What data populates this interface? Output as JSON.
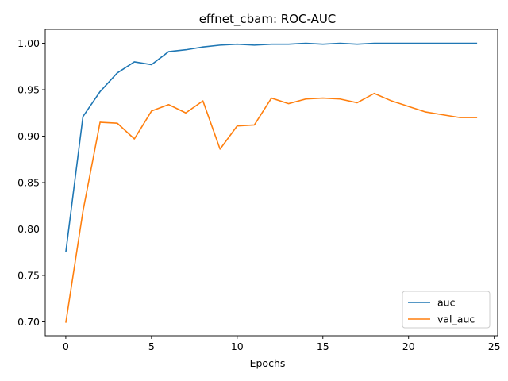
{
  "chart_data": {
    "type": "line",
    "title": "effnet_cbam: ROC-AUC",
    "xlabel": "Epochs",
    "ylabel": "",
    "xlim": [
      -1.2,
      25.2
    ],
    "ylim": [
      0.685,
      1.015
    ],
    "xticks": [
      0,
      5,
      10,
      15,
      20,
      25
    ],
    "xtick_labels": [
      "0",
      "5",
      "10",
      "15",
      "20",
      "25"
    ],
    "yticks": [
      0.7,
      0.75,
      0.8,
      0.85,
      0.9,
      0.95,
      1.0
    ],
    "ytick_labels": [
      "0.70",
      "0.75",
      "0.80",
      "0.85",
      "0.90",
      "0.95",
      "1.00"
    ],
    "grid": false,
    "legend_position": "lower-right",
    "x": [
      0,
      1,
      2,
      3,
      4,
      5,
      6,
      7,
      8,
      9,
      10,
      11,
      12,
      13,
      14,
      15,
      16,
      17,
      18,
      19,
      20,
      21,
      22,
      23,
      24
    ],
    "series": [
      {
        "name": "auc",
        "color": "#1f77b4",
        "values": [
          0.775,
          0.921,
          0.948,
          0.968,
          0.98,
          0.977,
          0.991,
          0.993,
          0.996,
          0.998,
          0.999,
          0.998,
          0.999,
          0.999,
          1.0,
          0.999,
          1.0,
          0.999,
          1.0,
          1.0,
          1.0,
          1.0,
          1.0,
          1.0,
          1.0
        ]
      },
      {
        "name": "val_auc",
        "color": "#ff7f0e",
        "values": [
          0.699,
          0.819,
          0.915,
          0.914,
          0.897,
          0.927,
          0.934,
          0.925,
          0.938,
          0.886,
          0.911,
          0.912,
          0.941,
          0.935,
          0.94,
          0.941,
          0.94,
          0.936,
          0.946,
          0.938,
          0.932,
          0.926,
          0.923,
          0.92,
          0.92
        ]
      }
    ]
  }
}
